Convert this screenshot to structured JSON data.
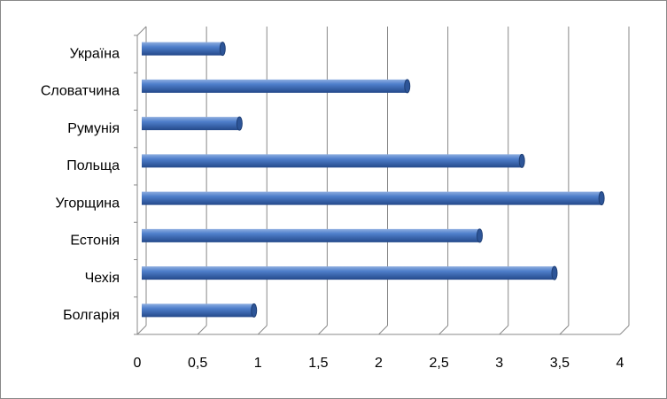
{
  "chart_data": {
    "type": "bar",
    "orientation": "horizontal",
    "categories": [
      "Україна",
      "Словатчина",
      "Румунія",
      "Польща",
      "Угорщина",
      "Естонія",
      "Чехія",
      "Болгарія"
    ],
    "values": [
      0.67,
      2.2,
      0.81,
      3.15,
      3.81,
      2.8,
      3.42,
      0.93
    ],
    "color": "#4472c4",
    "xlim": [
      0,
      4
    ],
    "xticks": [
      0,
      {
        "value": 0.5,
        "label": "0,5"
      },
      1,
      {
        "value": 1.5,
        "label": "1,5"
      },
      2,
      {
        "value": 2.5,
        "label": "2,5"
      },
      3,
      {
        "value": 3.5,
        "label": "3,5"
      },
      4
    ],
    "grid": true
  }
}
